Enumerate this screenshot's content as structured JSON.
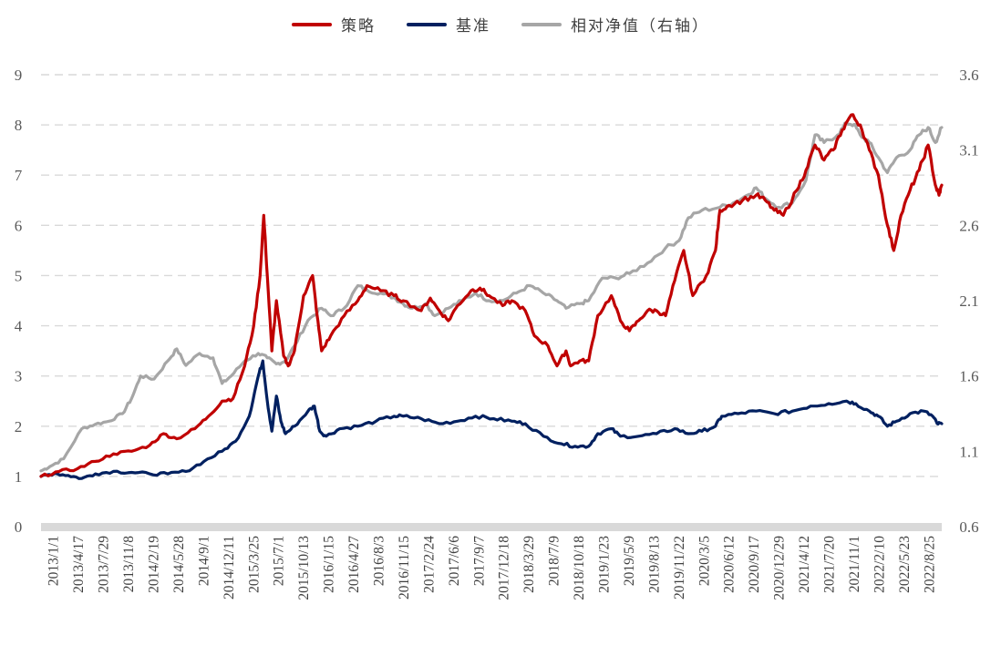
{
  "chart_data": {
    "type": "line",
    "title": "",
    "legend": [
      {
        "name": "策略",
        "color": "#C00000"
      },
      {
        "name": "基准",
        "color": "#002060"
      },
      {
        "name": "相对净值（右轴）",
        "color": "#A6A6A6"
      }
    ],
    "legend_position": "top-center",
    "y_left": {
      "ticks": [
        "0",
        "1",
        "2",
        "3",
        "4",
        "5",
        "6",
        "7",
        "8",
        "9"
      ],
      "range": [
        0,
        9
      ]
    },
    "y_right": {
      "ticks": [
        "0.6",
        "1.1",
        "1.6",
        "2.1",
        "2.6",
        "3.1",
        "3.6"
      ],
      "range": [
        0.6,
        3.6
      ]
    },
    "x_tick_labels": [
      "2013/1/1",
      "2013/4/17",
      "2013/7/29",
      "2013/11/8",
      "2014/2/19",
      "2014/5/28",
      "2014/9/1",
      "2014/12/11",
      "2015/3/25",
      "2015/7/1",
      "2015/10/13",
      "2016/1/15",
      "2016/4/27",
      "2016/8/3",
      "2016/11/15",
      "2017/2/24",
      "2017/6/6",
      "2017/9/7",
      "2017/12/18",
      "2018/3/29",
      "2018/7/9",
      "2018/10/18",
      "2019/1/23",
      "2019/5/9",
      "2019/8/13",
      "2019/11/22",
      "2020/3/5",
      "2020/6/12",
      "2020/9/17",
      "2020/12/29",
      "2021/4/12",
      "2021/7/20",
      "2021/11/1",
      "2022/2/10",
      "2022/5/23",
      "2022/8/25"
    ],
    "x_range": [
      2013.0,
      2022.95
    ],
    "grid": "horizontal-dashed",
    "series": [
      {
        "name": "策略",
        "axis": "left",
        "color": "#C00000",
        "points": [
          [
            2013.0,
            1.0
          ],
          [
            2013.2,
            1.1
          ],
          [
            2013.4,
            1.15
          ],
          [
            2013.6,
            1.3
          ],
          [
            2013.8,
            1.45
          ],
          [
            2014.0,
            1.5
          ],
          [
            2014.2,
            1.62
          ],
          [
            2014.35,
            1.85
          ],
          [
            2014.5,
            1.75
          ],
          [
            2014.7,
            1.95
          ],
          [
            2014.85,
            2.2
          ],
          [
            2015.0,
            2.5
          ],
          [
            2015.12,
            2.55
          ],
          [
            2015.25,
            3.2
          ],
          [
            2015.35,
            4.0
          ],
          [
            2015.42,
            5.0
          ],
          [
            2015.46,
            6.2
          ],
          [
            2015.5,
            5.0
          ],
          [
            2015.55,
            3.5
          ],
          [
            2015.6,
            4.5
          ],
          [
            2015.68,
            3.4
          ],
          [
            2015.73,
            3.2
          ],
          [
            2015.8,
            3.5
          ],
          [
            2015.9,
            4.6
          ],
          [
            2016.0,
            5.0
          ],
          [
            2016.05,
            4.2
          ],
          [
            2016.1,
            3.5
          ],
          [
            2016.2,
            3.8
          ],
          [
            2016.35,
            4.2
          ],
          [
            2016.5,
            4.5
          ],
          [
            2016.6,
            4.8
          ],
          [
            2016.75,
            4.7
          ],
          [
            2016.9,
            4.6
          ],
          [
            2017.0,
            4.5
          ],
          [
            2017.2,
            4.3
          ],
          [
            2017.3,
            4.55
          ],
          [
            2017.4,
            4.3
          ],
          [
            2017.5,
            4.1
          ],
          [
            2017.6,
            4.4
          ],
          [
            2017.75,
            4.7
          ],
          [
            2017.85,
            4.75
          ],
          [
            2017.95,
            4.6
          ],
          [
            2018.1,
            4.4
          ],
          [
            2018.2,
            4.5
          ],
          [
            2018.35,
            4.3
          ],
          [
            2018.45,
            3.8
          ],
          [
            2018.6,
            3.6
          ],
          [
            2018.7,
            3.2
          ],
          [
            2018.8,
            3.5
          ],
          [
            2018.85,
            3.2
          ],
          [
            2018.95,
            3.3
          ],
          [
            2019.05,
            3.3
          ],
          [
            2019.15,
            4.2
          ],
          [
            2019.3,
            4.6
          ],
          [
            2019.4,
            4.1
          ],
          [
            2019.5,
            3.9
          ],
          [
            2019.6,
            4.1
          ],
          [
            2019.7,
            4.3
          ],
          [
            2019.8,
            4.3
          ],
          [
            2019.9,
            4.2
          ],
          [
            2020.0,
            4.9
          ],
          [
            2020.1,
            5.5
          ],
          [
            2020.2,
            4.6
          ],
          [
            2020.35,
            5.0
          ],
          [
            2020.45,
            5.5
          ],
          [
            2020.5,
            6.3
          ],
          [
            2020.6,
            6.4
          ],
          [
            2020.75,
            6.5
          ],
          [
            2020.9,
            6.6
          ],
          [
            2021.0,
            6.5
          ],
          [
            2021.1,
            6.3
          ],
          [
            2021.2,
            6.2
          ],
          [
            2021.35,
            6.7
          ],
          [
            2021.45,
            7.1
          ],
          [
            2021.55,
            7.6
          ],
          [
            2021.65,
            7.3
          ],
          [
            2021.75,
            7.5
          ],
          [
            2021.85,
            7.9
          ],
          [
            2021.95,
            8.2
          ],
          [
            2022.05,
            8.0
          ],
          [
            2022.15,
            7.5
          ],
          [
            2022.25,
            7.0
          ],
          [
            2022.35,
            6.0
          ],
          [
            2022.42,
            5.5
          ],
          [
            2022.5,
            6.2
          ],
          [
            2022.6,
            6.7
          ],
          [
            2022.7,
            7.1
          ],
          [
            2022.8,
            7.6
          ],
          [
            2022.88,
            6.8
          ],
          [
            2022.92,
            6.6
          ],
          [
            2022.95,
            6.8
          ]
        ]
      },
      {
        "name": "基准",
        "axis": "left",
        "color": "#002060",
        "points": [
          [
            2013.0,
            1.0
          ],
          [
            2013.15,
            1.06
          ],
          [
            2013.3,
            1.02
          ],
          [
            2013.45,
            0.96
          ],
          [
            2013.6,
            1.05
          ],
          [
            2013.8,
            1.1
          ],
          [
            2014.0,
            1.08
          ],
          [
            2014.2,
            1.05
          ],
          [
            2014.4,
            1.05
          ],
          [
            2014.6,
            1.1
          ],
          [
            2014.8,
            1.3
          ],
          [
            2015.0,
            1.5
          ],
          [
            2015.15,
            1.7
          ],
          [
            2015.3,
            2.2
          ],
          [
            2015.4,
            3.0
          ],
          [
            2015.45,
            3.3
          ],
          [
            2015.5,
            2.5
          ],
          [
            2015.55,
            1.9
          ],
          [
            2015.6,
            2.6
          ],
          [
            2015.65,
            2.1
          ],
          [
            2015.7,
            1.85
          ],
          [
            2015.8,
            2.0
          ],
          [
            2015.95,
            2.3
          ],
          [
            2016.02,
            2.4
          ],
          [
            2016.08,
            1.9
          ],
          [
            2016.15,
            1.8
          ],
          [
            2016.3,
            1.95
          ],
          [
            2016.5,
            2.0
          ],
          [
            2016.7,
            2.1
          ],
          [
            2016.9,
            2.2
          ],
          [
            2017.0,
            2.2
          ],
          [
            2017.2,
            2.15
          ],
          [
            2017.4,
            2.05
          ],
          [
            2017.6,
            2.1
          ],
          [
            2017.8,
            2.2
          ],
          [
            2018.0,
            2.15
          ],
          [
            2018.2,
            2.1
          ],
          [
            2018.35,
            2.05
          ],
          [
            2018.55,
            1.8
          ],
          [
            2018.75,
            1.65
          ],
          [
            2018.9,
            1.6
          ],
          [
            2019.05,
            1.6
          ],
          [
            2019.15,
            1.85
          ],
          [
            2019.3,
            1.95
          ],
          [
            2019.4,
            1.8
          ],
          [
            2019.6,
            1.8
          ],
          [
            2019.8,
            1.85
          ],
          [
            2020.0,
            1.95
          ],
          [
            2020.15,
            1.85
          ],
          [
            2020.3,
            1.9
          ],
          [
            2020.45,
            2.0
          ],
          [
            2020.52,
            2.2
          ],
          [
            2020.7,
            2.25
          ],
          [
            2020.9,
            2.3
          ],
          [
            2021.1,
            2.25
          ],
          [
            2021.3,
            2.3
          ],
          [
            2021.5,
            2.4
          ],
          [
            2021.7,
            2.45
          ],
          [
            2021.9,
            2.5
          ],
          [
            2022.0,
            2.45
          ],
          [
            2022.15,
            2.3
          ],
          [
            2022.25,
            2.2
          ],
          [
            2022.35,
            2.0
          ],
          [
            2022.45,
            2.1
          ],
          [
            2022.6,
            2.25
          ],
          [
            2022.75,
            2.3
          ],
          [
            2022.85,
            2.2
          ],
          [
            2022.9,
            2.05
          ],
          [
            2022.95,
            2.05
          ]
        ]
      },
      {
        "name": "相对净值（右轴）",
        "axis": "right",
        "color": "#A6A6A6",
        "points": [
          [
            2013.0,
            0.97
          ],
          [
            2013.1,
            1.0
          ],
          [
            2013.25,
            1.05
          ],
          [
            2013.45,
            1.25
          ],
          [
            2013.6,
            1.28
          ],
          [
            2013.75,
            1.3
          ],
          [
            2013.9,
            1.35
          ],
          [
            2014.0,
            1.45
          ],
          [
            2014.1,
            1.6
          ],
          [
            2014.25,
            1.58
          ],
          [
            2014.4,
            1.7
          ],
          [
            2014.5,
            1.78
          ],
          [
            2014.6,
            1.67
          ],
          [
            2014.75,
            1.75
          ],
          [
            2014.9,
            1.72
          ],
          [
            2015.0,
            1.55
          ],
          [
            2015.1,
            1.6
          ],
          [
            2015.25,
            1.7
          ],
          [
            2015.4,
            1.75
          ],
          [
            2015.5,
            1.72
          ],
          [
            2015.6,
            1.68
          ],
          [
            2015.7,
            1.7
          ],
          [
            2015.8,
            1.8
          ],
          [
            2015.95,
            1.97
          ],
          [
            2016.1,
            2.05
          ],
          [
            2016.2,
            2.0
          ],
          [
            2016.35,
            2.05
          ],
          [
            2016.5,
            2.2
          ],
          [
            2016.6,
            2.17
          ],
          [
            2016.75,
            2.15
          ],
          [
            2016.9,
            2.12
          ],
          [
            2017.0,
            2.08
          ],
          [
            2017.1,
            2.05
          ],
          [
            2017.25,
            2.08
          ],
          [
            2017.35,
            2.0
          ],
          [
            2017.5,
            2.05
          ],
          [
            2017.65,
            2.1
          ],
          [
            2017.8,
            2.15
          ],
          [
            2017.95,
            2.1
          ],
          [
            2018.1,
            2.1
          ],
          [
            2018.25,
            2.15
          ],
          [
            2018.4,
            2.2
          ],
          [
            2018.55,
            2.15
          ],
          [
            2018.7,
            2.1
          ],
          [
            2018.8,
            2.05
          ],
          [
            2018.95,
            2.08
          ],
          [
            2019.05,
            2.1
          ],
          [
            2019.2,
            2.25
          ],
          [
            2019.35,
            2.25
          ],
          [
            2019.5,
            2.28
          ],
          [
            2019.7,
            2.35
          ],
          [
            2019.9,
            2.45
          ],
          [
            2020.05,
            2.5
          ],
          [
            2020.15,
            2.65
          ],
          [
            2020.3,
            2.7
          ],
          [
            2020.5,
            2.72
          ],
          [
            2020.65,
            2.75
          ],
          [
            2020.8,
            2.8
          ],
          [
            2020.9,
            2.85
          ],
          [
            2021.0,
            2.78
          ],
          [
            2021.15,
            2.72
          ],
          [
            2021.3,
            2.75
          ],
          [
            2021.45,
            2.9
          ],
          [
            2021.55,
            3.2
          ],
          [
            2021.65,
            3.15
          ],
          [
            2021.8,
            3.2
          ],
          [
            2021.9,
            3.28
          ],
          [
            2021.98,
            3.27
          ],
          [
            2022.05,
            3.2
          ],
          [
            2022.15,
            3.15
          ],
          [
            2022.25,
            3.05
          ],
          [
            2022.35,
            2.95
          ],
          [
            2022.45,
            3.05
          ],
          [
            2022.6,
            3.1
          ],
          [
            2022.7,
            3.2
          ],
          [
            2022.8,
            3.25
          ],
          [
            2022.88,
            3.15
          ],
          [
            2022.95,
            3.25
          ]
        ]
      }
    ]
  }
}
